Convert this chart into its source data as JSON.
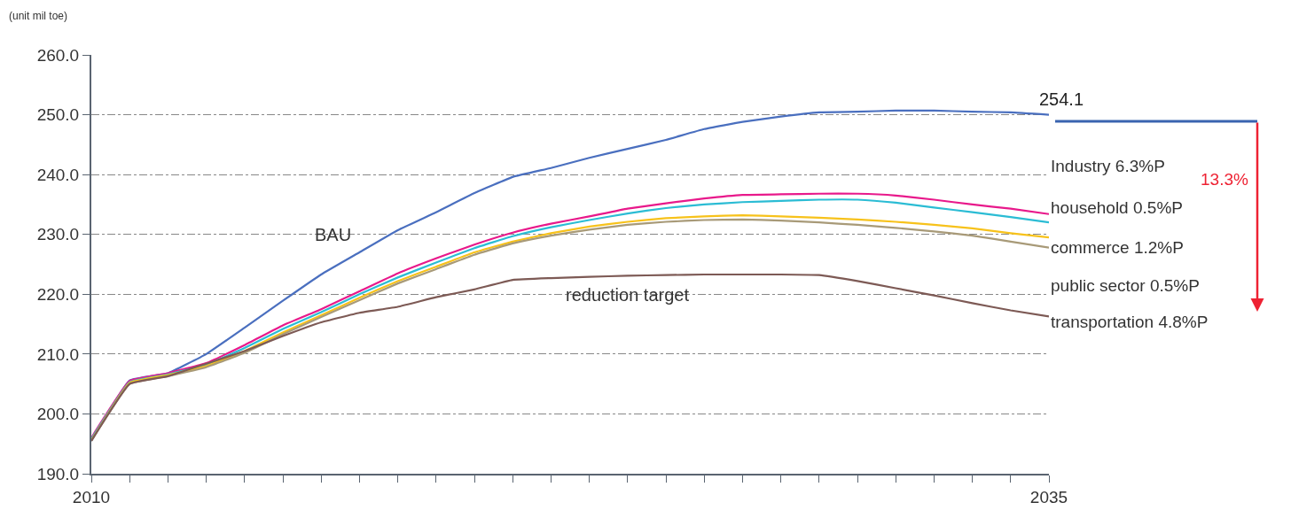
{
  "chart_data": {
    "type": "line",
    "ylabel": "(unit mil toe)",
    "x": [
      2010,
      2011,
      2012,
      2013,
      2014,
      2015,
      2016,
      2017,
      2018,
      2019,
      2020,
      2021,
      2022,
      2023,
      2024,
      2025,
      2026,
      2027,
      2028,
      2029,
      2030,
      2031,
      2032,
      2033,
      2034,
      2035
    ],
    "series": [
      {
        "name": "BAU",
        "color": "#4a6fbf",
        "values": [
          195.5,
          205.6,
          206.8,
          210.0,
          214.4,
          218.9,
          223.3,
          227.0,
          230.7,
          233.7,
          236.9,
          239.6,
          241.1,
          242.8,
          244.3,
          245.8,
          247.6,
          248.8,
          249.7,
          250.4,
          250.5,
          250.7,
          250.7,
          250.5,
          250.4,
          250.0
        ]
      },
      {
        "color": "#e8198b",
        "values": [
          196.0,
          205.5,
          206.8,
          208.5,
          211.5,
          214.8,
          217.5,
          220.5,
          223.5,
          226.0,
          228.3,
          230.3,
          231.8,
          233.0,
          234.3,
          235.2,
          236.0,
          236.6,
          236.7,
          236.8,
          236.8,
          236.5,
          235.8,
          235.0,
          234.3,
          233.4
        ]
      },
      {
        "color": "#2bbcd4",
        "values": [
          195.8,
          205.3,
          206.6,
          208.2,
          211.0,
          214.2,
          217.0,
          220.0,
          222.8,
          225.3,
          227.7,
          229.7,
          231.2,
          232.4,
          233.5,
          234.4,
          235.0,
          235.4,
          235.6,
          235.8,
          235.8,
          235.3,
          234.5,
          233.7,
          232.9,
          232.0
        ]
      },
      {
        "color": "#f7c21b",
        "values": [
          195.6,
          205.2,
          206.5,
          208.0,
          210.5,
          213.6,
          216.5,
          219.4,
          222.2,
          224.6,
          227.0,
          228.8,
          230.2,
          231.3,
          232.1,
          232.7,
          233.0,
          233.2,
          233.0,
          232.8,
          232.5,
          232.1,
          231.6,
          231.0,
          230.2,
          229.5
        ]
      },
      {
        "color": "#a89a78",
        "values": [
          195.5,
          205.0,
          206.3,
          207.8,
          210.2,
          213.3,
          216.2,
          219.0,
          221.8,
          224.2,
          226.6,
          228.5,
          229.8,
          230.8,
          231.6,
          232.1,
          232.4,
          232.5,
          232.3,
          232.0,
          231.6,
          231.1,
          230.5,
          229.8,
          228.8,
          227.8
        ]
      },
      {
        "name": "reduction target",
        "color": "#7d5a55",
        "values": [
          195.5,
          205.0,
          206.3,
          208.4,
          210.5,
          213.0,
          215.3,
          216.9,
          217.9,
          219.5,
          220.8,
          222.4,
          222.7,
          222.9,
          223.1,
          223.2,
          223.3,
          223.3,
          223.3,
          223.2,
          222.2,
          221.0,
          219.8,
          218.5,
          217.3,
          216.3
        ]
      }
    ],
    "xlim": [
      2010,
      2035
    ],
    "xticks": [
      2010,
      {
        "value": 2011,
        "label": null
      },
      {
        "value": 2012,
        "label": null
      },
      {
        "value": 2013,
        "label": null
      },
      {
        "value": 2014,
        "label": null
      },
      {
        "value": 2015,
        "label": null
      },
      {
        "value": 2016,
        "label": null
      },
      {
        "value": 2017,
        "label": null
      },
      {
        "value": 2018,
        "label": null
      },
      {
        "value": 2019,
        "label": null
      },
      {
        "value": 2020,
        "label": null
      },
      {
        "value": 2021,
        "label": null
      },
      {
        "value": 2022,
        "label": null
      },
      {
        "value": 2023,
        "label": null
      },
      {
        "value": 2024,
        "label": null
      },
      {
        "value": 2025,
        "label": null
      },
      {
        "value": 2026,
        "label": null
      },
      {
        "value": 2027,
        "label": null
      },
      {
        "value": 2028,
        "label": null
      },
      {
        "value": 2029,
        "label": null
      },
      {
        "value": 2030,
        "label": null
      },
      {
        "value": 2031,
        "label": null
      },
      {
        "value": 2032,
        "label": null
      },
      {
        "value": 2033,
        "label": null
      },
      {
        "value": 2034,
        "label": null
      },
      2035
    ],
    "ylim": [
      190,
      260
    ],
    "yticks": [
      {
        "value": 190,
        "label": "190.0"
      },
      {
        "value": 200,
        "label": "200.0"
      },
      {
        "value": 210,
        "label": "210.0"
      },
      {
        "value": 220,
        "label": "220.0"
      },
      {
        "value": 230,
        "label": "230.0"
      },
      {
        "value": 240,
        "label": "240.0"
      },
      {
        "value": 250,
        "label": "250.0"
      },
      {
        "value": 260,
        "label": "260.0"
      }
    ],
    "grid": "y",
    "legend": false,
    "marker": "none",
    "line_style": "solid",
    "annotations": [
      "254.1",
      "13.3%",
      "Industry 6.3%P",
      "household 0.5%P",
      "commerce 1.2%P",
      "public sector 0.5%P",
      "transportation 4.8%P"
    ]
  }
}
